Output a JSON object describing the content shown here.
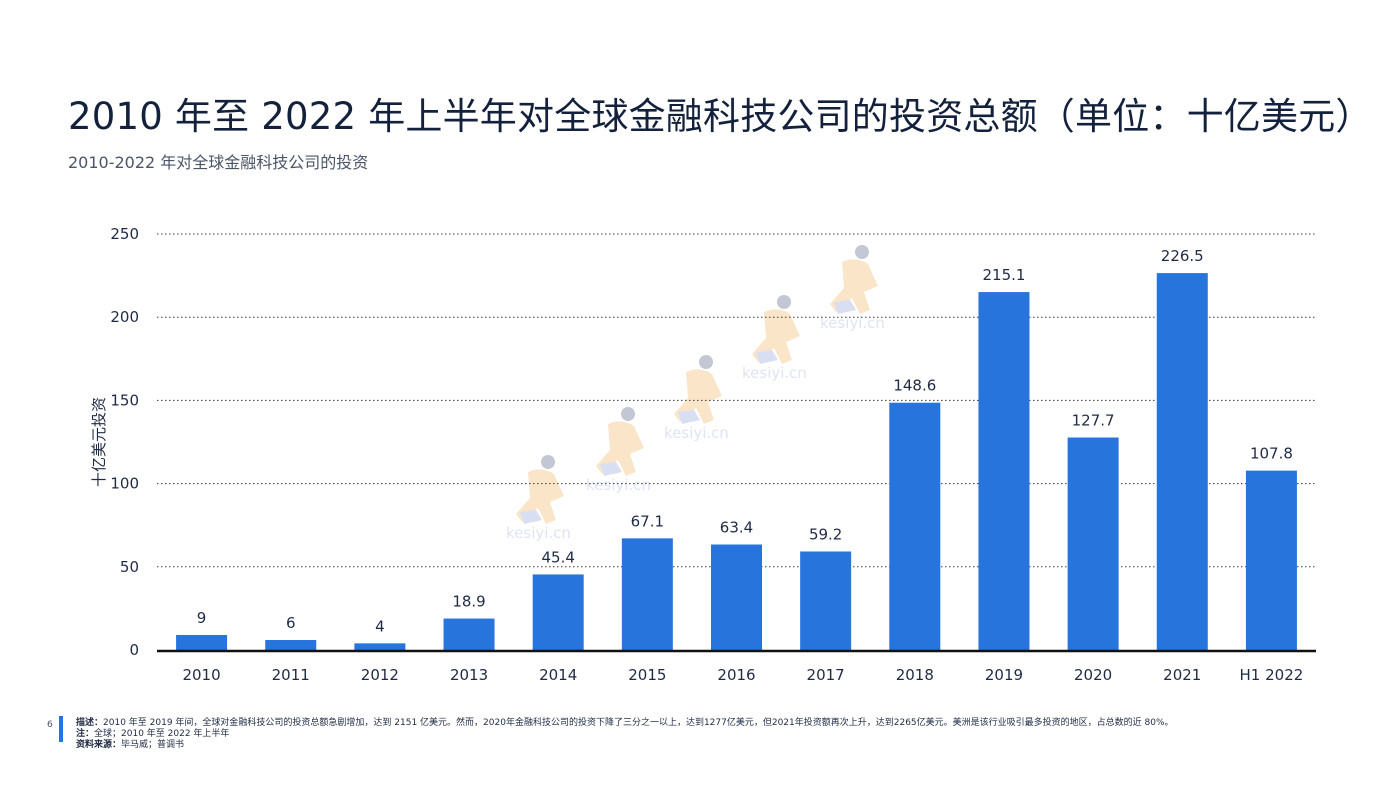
{
  "header": {
    "title": "2010 年至 2022 年上半年对全球金融科技公司的投资总额（单位：十亿美元）",
    "subtitle": "2010-2022 年对全球金融科技公司的投资"
  },
  "chart_data": {
    "type": "bar",
    "title": "",
    "xlabel": "",
    "ylabel": "十亿美元投资",
    "categories": [
      "2010",
      "2011",
      "2012",
      "2013",
      "2014",
      "2015",
      "2016",
      "2017",
      "2018",
      "2019",
      "2020",
      "2021",
      "H1 2022"
    ],
    "values": [
      9,
      6,
      4,
      18.9,
      45.4,
      67.1,
      63.4,
      59.2,
      148.6,
      215.1,
      127.7,
      226.5,
      107.8
    ],
    "value_labels": [
      "9",
      "6",
      "4",
      "18.9",
      "45.4",
      "67.1",
      "63.4",
      "59.2",
      "148.6",
      "215.1",
      "127.7",
      "226.5",
      "107.8"
    ],
    "ylim": [
      0,
      250
    ],
    "yticks": [
      0,
      50,
      100,
      150,
      200,
      250
    ],
    "grid": "dotted-horizontal",
    "legend": "none",
    "bar_color": "#2874dd"
  },
  "footer": {
    "page_number": "6",
    "description_label": "描述：",
    "description_text": "2010 年至 2019 年间，全球对金融科技公司的投资总额急剧增加，达到 2151 亿美元。然而，2020年金融科技公司的投资下降了三分之一以上，达到1277亿美元，但2021年投资额再次上升，达到2265亿美元。美洲是该行业吸引最多投资的地区，占总数的近 80%。",
    "note_label": "注：",
    "note_text": "全球；2010 年至 2022 年上半年",
    "source_label": "资料来源：",
    "source_text": "毕马威；普调书"
  },
  "watermark": {
    "text": "kesiyi.cn",
    "color": "#f3a63f"
  }
}
